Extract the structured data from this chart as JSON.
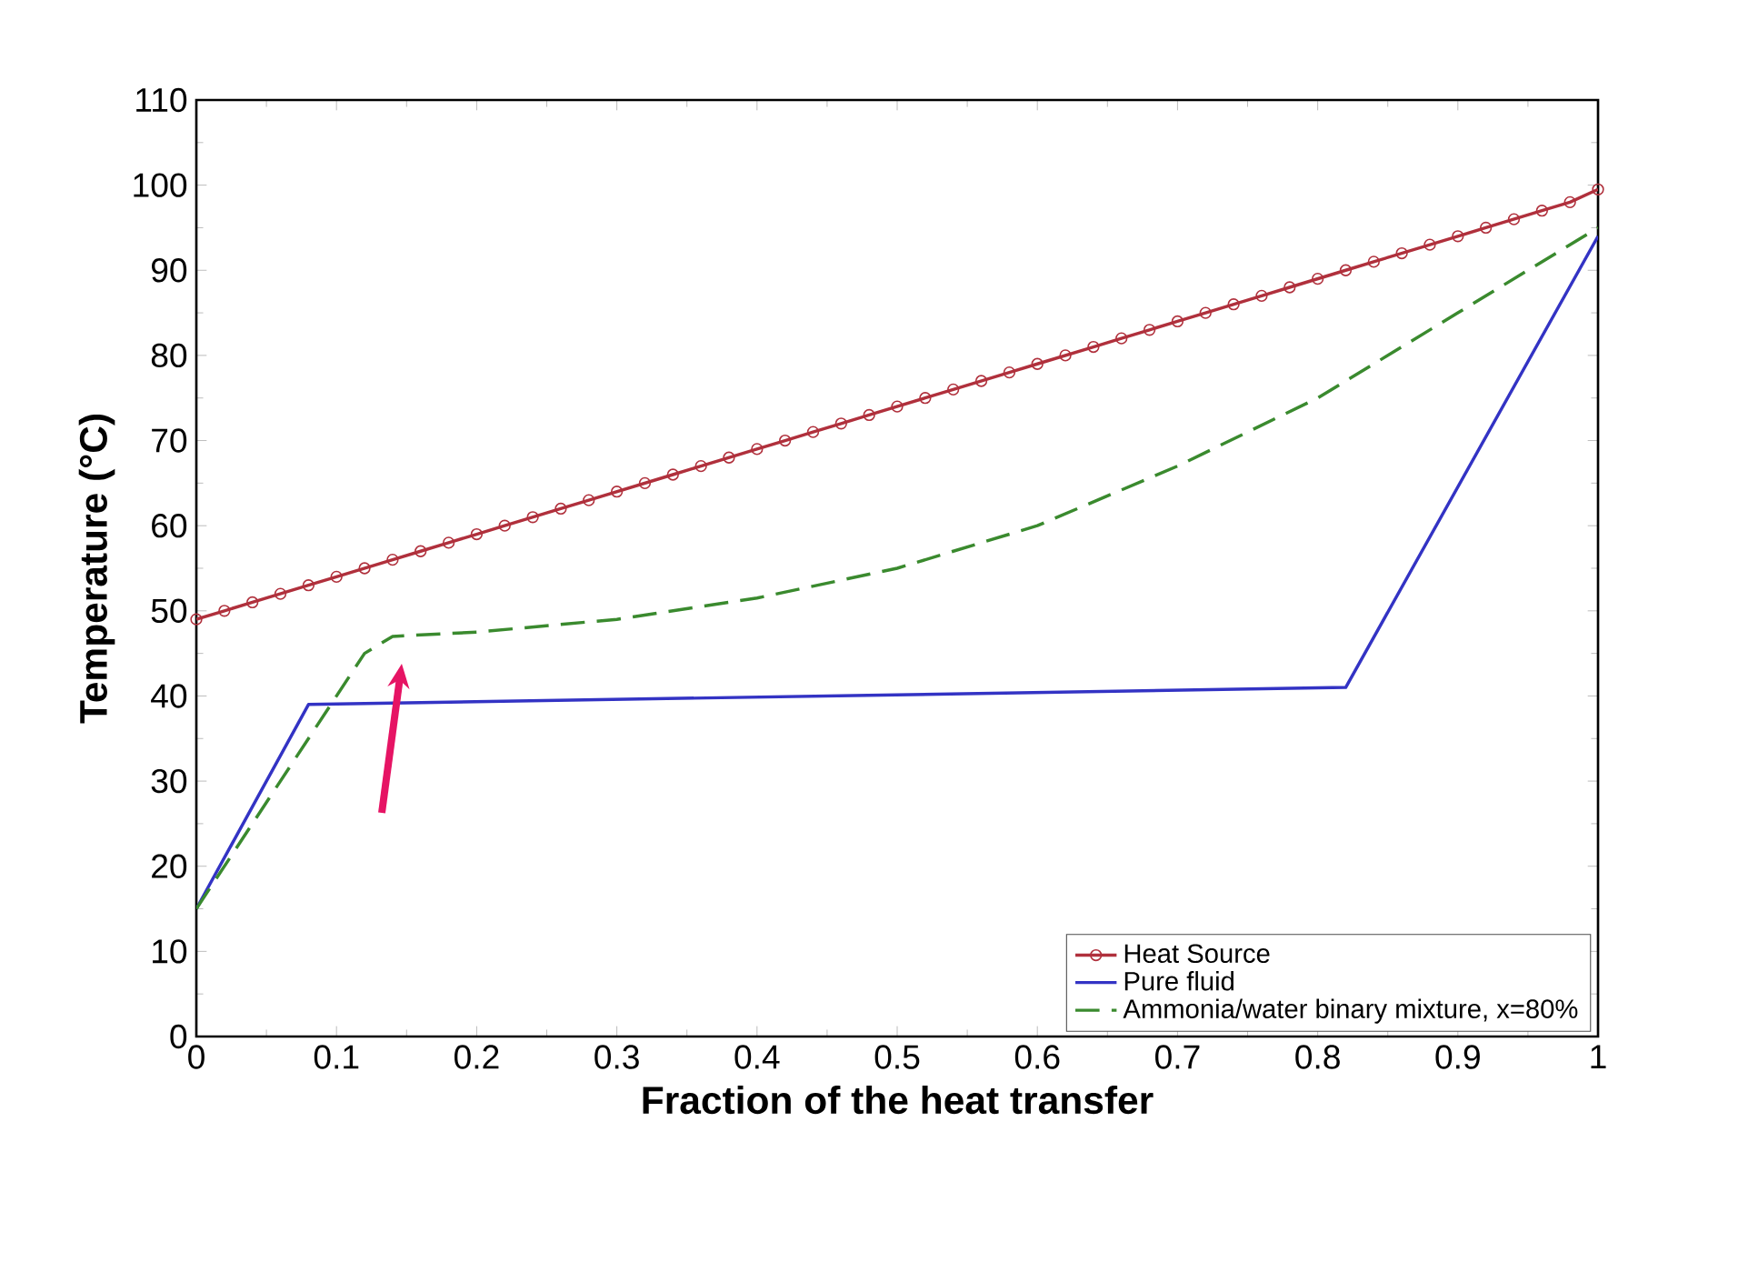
{
  "chart_data": {
    "type": "line",
    "xlabel": "Fraction of the heat transfer",
    "ylabel": "Temperature (°C)",
    "xlim": [
      0,
      1
    ],
    "ylim": [
      0,
      110
    ],
    "xticks": [
      0,
      0.1,
      0.2,
      0.3,
      0.4,
      0.5,
      0.6,
      0.7,
      0.8,
      0.9,
      1
    ],
    "yticks": [
      0,
      10,
      20,
      30,
      40,
      50,
      60,
      70,
      80,
      90,
      100,
      110
    ],
    "grid": false,
    "legend": "bottom right",
    "series": [
      {
        "name": "Heat Source",
        "color": "#b0303c",
        "marker": "circle",
        "line_style": "solid",
        "x": [
          0,
          0.02,
          0.04,
          0.06,
          0.08,
          0.1,
          0.12,
          0.14,
          0.16,
          0.18,
          0.2,
          0.22,
          0.24,
          0.26,
          0.28,
          0.3,
          0.32,
          0.34,
          0.36,
          0.38,
          0.4,
          0.42,
          0.44,
          0.46,
          0.48,
          0.5,
          0.52,
          0.54,
          0.56,
          0.58,
          0.6,
          0.62,
          0.64,
          0.66,
          0.68,
          0.7,
          0.72,
          0.74,
          0.76,
          0.78,
          0.8,
          0.82,
          0.84,
          0.86,
          0.88,
          0.9,
          0.92,
          0.94,
          0.96,
          0.98,
          1
        ],
        "values": [
          49,
          50,
          51,
          52,
          53,
          54,
          55,
          56,
          57,
          58,
          59,
          60,
          61,
          62,
          63,
          64,
          65,
          66,
          67,
          68,
          69,
          70,
          71,
          72,
          73,
          74,
          75,
          76,
          77,
          78,
          79,
          80,
          81,
          82,
          83,
          84,
          85,
          86,
          87,
          88,
          89,
          90,
          91,
          92,
          93,
          94,
          95,
          96,
          97,
          98,
          99.5
        ]
      },
      {
        "name": "Pure fluid",
        "color": "#3333c4",
        "marker": "none",
        "line_style": "solid",
        "x": [
          0,
          0.08,
          0.82,
          1
        ],
        "values": [
          15,
          39,
          41,
          94
        ]
      },
      {
        "name": "Ammonia/water binary mixture, x=80%",
        "color": "#3a8a2e",
        "marker": "none",
        "line_style": "dashed",
        "x": [
          0,
          0.12,
          0.14,
          0.2,
          0.3,
          0.4,
          0.5,
          0.6,
          0.7,
          0.8,
          0.9,
          1
        ],
        "values": [
          15,
          45,
          47,
          47.5,
          49,
          51.5,
          55,
          60,
          67,
          75,
          85,
          95
        ]
      }
    ]
  }
}
